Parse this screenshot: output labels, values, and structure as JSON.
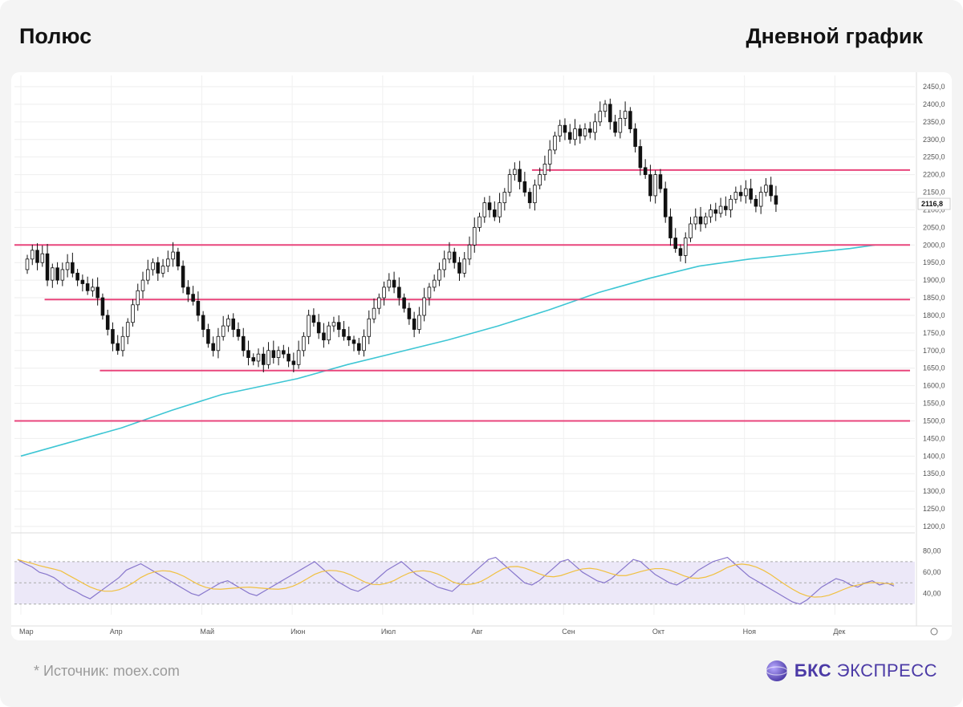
{
  "header": {
    "ticker": "Полюс",
    "timeframe": "Дневной график"
  },
  "footer": {
    "source": "*  Источник: moex.com",
    "brand_bold": "БКС",
    "brand_rest": "ЭКСПРЕСС"
  },
  "colors": {
    "up_candle": "#ffffff",
    "down_candle": "#111111",
    "levels": "#e8467c",
    "ma": "#3ec6d4",
    "rsi": "#8877cc",
    "rsi_ma": "#f0c040",
    "rsi_band": "#ece8f8"
  },
  "chart_data": {
    "type": "candlestick",
    "price_axis": {
      "min": 1200,
      "max": 2450,
      "ticks": [
        "2450,0",
        "2400,0",
        "2350,0",
        "2300,0",
        "2250,0",
        "2200,0",
        "2150,0",
        "2100,0",
        "2050,0",
        "2000,0",
        "1950,0",
        "1900,0",
        "1850,0",
        "1800,0",
        "1750,0",
        "1700,0",
        "1650,0",
        "1600,0",
        "1550,0",
        "1500,0",
        "1450,0",
        "1400,0",
        "1350,0",
        "1300,0",
        "1250,0",
        "1200,0"
      ]
    },
    "last_price": "2116,8",
    "x_labels": [
      "Мар",
      "Апр",
      "Май",
      "Июн",
      "Июл",
      "Авг",
      "Сен",
      "Окт",
      "Ноя",
      "Дек"
    ],
    "horizontal_levels": [
      {
        "price": 2213,
        "from_day": 103,
        "to_day": 175
      },
      {
        "price": 2000,
        "from_day": 0,
        "to_day": 175
      },
      {
        "price": 1845,
        "from_day": 6,
        "to_day": 175
      },
      {
        "price": 1643,
        "from_day": 17,
        "to_day": 175
      },
      {
        "price": 1500,
        "from_day": 0,
        "to_day": 175
      }
    ],
    "ma_points": [
      [
        0,
        1400
      ],
      [
        20,
        1480
      ],
      [
        30,
        1530
      ],
      [
        40,
        1575
      ],
      [
        55,
        1620
      ],
      [
        65,
        1660
      ],
      [
        75,
        1695
      ],
      [
        85,
        1730
      ],
      [
        95,
        1770
      ],
      [
        105,
        1815
      ],
      [
        115,
        1865
      ],
      [
        125,
        1905
      ],
      [
        135,
        1940
      ],
      [
        145,
        1960
      ],
      [
        155,
        1975
      ],
      [
        165,
        1990
      ],
      [
        170,
        2000
      ]
    ],
    "candles": [
      [
        1930,
        1960
      ],
      [
        1960,
        1985
      ],
      [
        1985,
        1950
      ],
      [
        1950,
        1975
      ],
      [
        1975,
        1900
      ],
      [
        1900,
        1935
      ],
      [
        1935,
        1900
      ],
      [
        1900,
        1930
      ],
      [
        1930,
        1950
      ],
      [
        1950,
        1920
      ],
      [
        1920,
        1900
      ],
      [
        1900,
        1890
      ],
      [
        1890,
        1870
      ],
      [
        1870,
        1880
      ],
      [
        1880,
        1850
      ],
      [
        1850,
        1800
      ],
      [
        1800,
        1760
      ],
      [
        1760,
        1720
      ],
      [
        1720,
        1700
      ],
      [
        1700,
        1740
      ],
      [
        1740,
        1780
      ],
      [
        1780,
        1830
      ],
      [
        1830,
        1870
      ],
      [
        1870,
        1900
      ],
      [
        1900,
        1930
      ],
      [
        1930,
        1950
      ],
      [
        1950,
        1920
      ],
      [
        1920,
        1940
      ],
      [
        1940,
        1960
      ],
      [
        1960,
        1980
      ],
      [
        1980,
        1940
      ],
      [
        1940,
        1880
      ],
      [
        1880,
        1860
      ],
      [
        1860,
        1840
      ],
      [
        1840,
        1800
      ],
      [
        1800,
        1760
      ],
      [
        1760,
        1720
      ],
      [
        1720,
        1700
      ],
      [
        1700,
        1740
      ],
      [
        1740,
        1770
      ],
      [
        1770,
        1790
      ],
      [
        1790,
        1760
      ],
      [
        1760,
        1740
      ],
      [
        1740,
        1700
      ],
      [
        1700,
        1680
      ],
      [
        1680,
        1670
      ],
      [
        1670,
        1690
      ],
      [
        1690,
        1660
      ],
      [
        1660,
        1700
      ],
      [
        1700,
        1680
      ],
      [
        1680,
        1700
      ],
      [
        1700,
        1690
      ],
      [
        1690,
        1670
      ],
      [
        1670,
        1660
      ],
      [
        1660,
        1700
      ],
      [
        1700,
        1740
      ],
      [
        1740,
        1800
      ],
      [
        1800,
        1780
      ],
      [
        1780,
        1750
      ],
      [
        1750,
        1730
      ],
      [
        1730,
        1770
      ],
      [
        1770,
        1780
      ],
      [
        1780,
        1760
      ],
      [
        1760,
        1740
      ],
      [
        1740,
        1730
      ],
      [
        1730,
        1720
      ],
      [
        1720,
        1700
      ],
      [
        1700,
        1740
      ],
      [
        1740,
        1790
      ],
      [
        1790,
        1820
      ],
      [
        1820,
        1850
      ],
      [
        1850,
        1880
      ],
      [
        1880,
        1900
      ],
      [
        1900,
        1880
      ],
      [
        1880,
        1850
      ],
      [
        1850,
        1820
      ],
      [
        1820,
        1790
      ],
      [
        1790,
        1760
      ],
      [
        1760,
        1800
      ],
      [
        1800,
        1850
      ],
      [
        1850,
        1880
      ],
      [
        1880,
        1900
      ],
      [
        1900,
        1930
      ],
      [
        1930,
        1960
      ],
      [
        1960,
        1980
      ],
      [
        1980,
        1950
      ],
      [
        1950,
        1920
      ],
      [
        1920,
        1960
      ],
      [
        1960,
        2000
      ],
      [
        2000,
        2050
      ],
      [
        2050,
        2080
      ],
      [
        2080,
        2120
      ],
      [
        2120,
        2100
      ],
      [
        2100,
        2080
      ],
      [
        2080,
        2120
      ],
      [
        2120,
        2150
      ],
      [
        2150,
        2200
      ],
      [
        2200,
        2215
      ],
      [
        2215,
        2180
      ],
      [
        2180,
        2150
      ],
      [
        2150,
        2120
      ],
      [
        2120,
        2170
      ],
      [
        2170,
        2200
      ],
      [
        2200,
        2230
      ],
      [
        2230,
        2270
      ],
      [
        2270,
        2310
      ],
      [
        2310,
        2340
      ],
      [
        2340,
        2320
      ],
      [
        2320,
        2300
      ],
      [
        2300,
        2330
      ],
      [
        2330,
        2310
      ],
      [
        2310,
        2330
      ],
      [
        2330,
        2320
      ],
      [
        2320,
        2350
      ],
      [
        2350,
        2380
      ],
      [
        2380,
        2400
      ],
      [
        2400,
        2350
      ],
      [
        2350,
        2320
      ],
      [
        2320,
        2360
      ],
      [
        2360,
        2380
      ],
      [
        2380,
        2330
      ],
      [
        2330,
        2280
      ],
      [
        2280,
        2220
      ],
      [
        2220,
        2200
      ],
      [
        2200,
        2140
      ],
      [
        2140,
        2200
      ],
      [
        2200,
        2160
      ],
      [
        2160,
        2080
      ],
      [
        2080,
        2020
      ],
      [
        2020,
        1990
      ],
      [
        1990,
        1970
      ],
      [
        1970,
        2020
      ],
      [
        2020,
        2060
      ],
      [
        2060,
        2080
      ],
      [
        2080,
        2060
      ],
      [
        2060,
        2080
      ],
      [
        2080,
        2100
      ],
      [
        2100,
        2090
      ],
      [
        2090,
        2110
      ],
      [
        2110,
        2100
      ],
      [
        2100,
        2130
      ],
      [
        2130,
        2150
      ],
      [
        2150,
        2140
      ],
      [
        2140,
        2160
      ],
      [
        2160,
        2130
      ],
      [
        2130,
        2110
      ],
      [
        2110,
        2150
      ],
      [
        2150,
        2170
      ],
      [
        2170,
        2140
      ],
      [
        2140,
        2116
      ]
    ],
    "rsi_axis": {
      "ticks": [
        "80,00",
        "60,00",
        "40,00"
      ],
      "upper_band": 70,
      "lower_band": 30,
      "mid": 50
    },
    "rsi_values": [
      72,
      68,
      65,
      60,
      58,
      55,
      50,
      45,
      42,
      38,
      35,
      40,
      45,
      50,
      55,
      62,
      65,
      68,
      64,
      60,
      56,
      52,
      48,
      44,
      40,
      38,
      42,
      46,
      50,
      52,
      48,
      44,
      40,
      38,
      42,
      46,
      50,
      54,
      58,
      62,
      66,
      70,
      64,
      58,
      52,
      48,
      44,
      42,
      46,
      50,
      56,
      62,
      66,
      70,
      64,
      58,
      54,
      50,
      46,
      44,
      42,
      48,
      54,
      60,
      66,
      72,
      74,
      68,
      62,
      56,
      50,
      48,
      52,
      58,
      64,
      70,
      72,
      66,
      60,
      56,
      52,
      50,
      54,
      60,
      66,
      72,
      70,
      64,
      58,
      54,
      50,
      48,
      52,
      56,
      62,
      66,
      70,
      72,
      74,
      68,
      62,
      56,
      52,
      48,
      44,
      40,
      36,
      32,
      30,
      34,
      40,
      46,
      50,
      54,
      52,
      48,
      46,
      50,
      52,
      48,
      50,
      47
    ]
  }
}
